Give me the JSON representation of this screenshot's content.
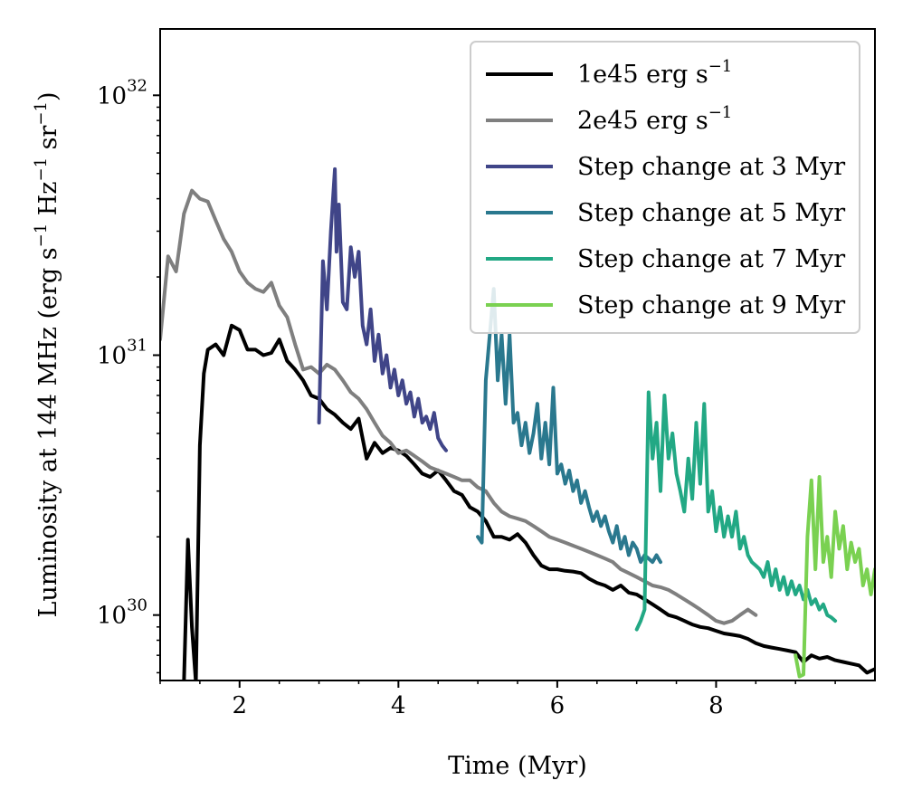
{
  "chart_data": {
    "type": "line",
    "xlabel": "Time (Myr)",
    "ylabel_parts": [
      "Luminosity at 144 MHz (erg s",
      "−1",
      " Hz",
      "−1",
      " sr",
      "−1",
      ")"
    ],
    "x_ticks": [
      {
        "value": 2,
        "label": "2"
      },
      {
        "value": 4,
        "label": "4"
      },
      {
        "value": 6,
        "label": "6"
      },
      {
        "value": 8,
        "label": "8"
      }
    ],
    "y_ticks": [
      {
        "value": 1e+30,
        "base": "10",
        "exp": "30"
      },
      {
        "value": 1e+31,
        "base": "10",
        "exp": "31"
      },
      {
        "value": 1e+32,
        "base": "10",
        "exp": "32"
      }
    ],
    "xlim": [
      1.0,
      10.0
    ],
    "ylim": [
      5.6e+29,
      1.8e+32
    ],
    "yscale": "log",
    "grid": false,
    "legend_position": "top-right",
    "series": [
      {
        "name": "1e45 erg s",
        "name_sup": "−1",
        "color": "#000000",
        "x": [
          1.3,
          1.35,
          1.4,
          1.45,
          1.5,
          1.55,
          1.6,
          1.7,
          1.8,
          1.9,
          2.0,
          2.1,
          2.2,
          2.3,
          2.4,
          2.5,
          2.6,
          2.7,
          2.8,
          2.9,
          3.0,
          3.1,
          3.2,
          3.3,
          3.4,
          3.5,
          3.6,
          3.7,
          3.8,
          3.9,
          4.0,
          4.1,
          4.2,
          4.3,
          4.4,
          4.5,
          4.6,
          4.7,
          4.8,
          4.9,
          5.0,
          5.1,
          5.2,
          5.3,
          5.4,
          5.5,
          5.6,
          5.7,
          5.8,
          5.9,
          6.0,
          6.1,
          6.2,
          6.3,
          6.4,
          6.5,
          6.6,
          6.7,
          6.8,
          6.9,
          7.0,
          7.1,
          7.2,
          7.3,
          7.4,
          7.5,
          7.6,
          7.7,
          7.8,
          7.9,
          8.0,
          8.1,
          8.2,
          8.3,
          8.4,
          8.5,
          8.6,
          8.7,
          8.8,
          8.9,
          9.0,
          9.1,
          9.2,
          9.3,
          9.4,
          9.5,
          9.6,
          9.7,
          9.8,
          9.9,
          10.0
        ],
        "y": [
          5.5e+29,
          1.95e+30,
          9e+29,
          5.5e+29,
          4.5e+30,
          8.5e+30,
          1.05e+31,
          1.1e+31,
          1e+31,
          1.3e+31,
          1.25e+31,
          1.05e+31,
          1.05e+31,
          1e+31,
          1.02e+31,
          1.15e+31,
          9.5e+30,
          8.8e+30,
          8e+30,
          7e+30,
          6.8e+30,
          6.2e+30,
          5.9e+30,
          5.5e+30,
          5.2e+30,
          5.7e+30,
          4e+30,
          4.6e+30,
          4.2e+30,
          4.4e+30,
          4.3e+30,
          4.1e+30,
          3.8e+30,
          3.5e+30,
          3.4e+30,
          3.6e+30,
          3.3e+30,
          3e+30,
          2.9e+30,
          2.6e+30,
          2.5e+30,
          2.3e+30,
          2e+30,
          2e+30,
          1.95e+30,
          2.05e+30,
          1.9e+30,
          1.7e+30,
          1.55e+30,
          1.5e+30,
          1.5e+30,
          1.48e+30,
          1.47e+30,
          1.45e+30,
          1.38e+30,
          1.33e+30,
          1.3e+30,
          1.25e+30,
          1.3e+30,
          1.22e+30,
          1.2e+30,
          1.15e+30,
          1.1e+30,
          1.05e+30,
          1e+30,
          9.8e+29,
          9.5e+29,
          9.2e+29,
          9e+29,
          8.9e+29,
          8.7e+29,
          8.5e+29,
          8.4e+29,
          8.3e+29,
          8.1e+29,
          7.8e+29,
          7.6e+29,
          7.5e+29,
          7.4e+29,
          7.3e+29,
          7.2e+29,
          6.6e+29,
          7e+29,
          6.8e+29,
          6.9e+29,
          6.7e+29,
          6.6e+29,
          6.5e+29,
          6.4e+29,
          6e+29,
          6.2e+29
        ]
      },
      {
        "name": "2e45 erg s",
        "name_sup": "−1",
        "color": "#7f7f7f",
        "x": [
          1.0,
          1.1,
          1.2,
          1.3,
          1.4,
          1.5,
          1.6,
          1.7,
          1.8,
          1.9,
          2.0,
          2.1,
          2.2,
          2.3,
          2.4,
          2.5,
          2.6,
          2.7,
          2.8,
          2.9,
          3.0,
          3.1,
          3.2,
          3.3,
          3.4,
          3.5,
          3.6,
          3.7,
          3.8,
          3.9,
          4.0,
          4.1,
          4.2,
          4.3,
          4.4,
          4.5,
          4.6,
          4.7,
          4.8,
          4.9,
          5.0,
          5.1,
          5.2,
          5.3,
          5.4,
          5.5,
          5.6,
          5.7,
          5.8,
          5.9,
          6.0,
          6.1,
          6.2,
          6.3,
          6.4,
          6.5,
          6.6,
          6.7,
          6.8,
          6.9,
          7.0,
          7.1,
          7.2,
          7.3,
          7.4,
          7.5,
          7.6,
          7.7,
          7.8,
          7.9,
          8.0,
          8.1,
          8.2,
          8.3,
          8.4,
          8.5
        ],
        "y": [
          1.15e+31,
          2.4e+31,
          2.1e+31,
          3.5e+31,
          4.3e+31,
          4e+31,
          3.9e+31,
          3.3e+31,
          2.8e+31,
          2.5e+31,
          2.1e+31,
          1.9e+31,
          1.8e+31,
          1.75e+31,
          1.9e+31,
          1.55e+31,
          1.4e+31,
          1.1e+31,
          8.8e+30,
          9e+30,
          8.5e+30,
          9.2e+30,
          8.8e+30,
          8e+30,
          7.2e+30,
          6.8e+30,
          6.2e+30,
          5.5e+30,
          4.9e+30,
          4.6e+30,
          4.2e+30,
          4.3e+30,
          4.1e+30,
          3.9e+30,
          3.7e+30,
          3.6e+30,
          3.5e+30,
          3.4e+30,
          3.3e+30,
          3.3e+30,
          3.1e+30,
          3e+30,
          2.7e+30,
          2.5e+30,
          2.4e+30,
          2.35e+30,
          2.3e+30,
          2.2e+30,
          2.1e+30,
          2e+30,
          1.95e+30,
          1.9e+30,
          1.85e+30,
          1.8e+30,
          1.75e+30,
          1.7e+30,
          1.65e+30,
          1.6e+30,
          1.5e+30,
          1.45e+30,
          1.4e+30,
          1.35e+30,
          1.3e+30,
          1.28e+30,
          1.25e+30,
          1.2e+30,
          1.15e+30,
          1.1e+30,
          1.05e+30,
          1e+30,
          9.5e+29,
          9.3e+29,
          9.5e+29,
          1e+30,
          1.05e+30,
          1e+30
        ]
      },
      {
        "name": "Step change at 3 Myr",
        "color": "#404588",
        "x": [
          3.0,
          3.05,
          3.1,
          3.15,
          3.2,
          3.22,
          3.25,
          3.3,
          3.35,
          3.4,
          3.45,
          3.5,
          3.55,
          3.6,
          3.65,
          3.7,
          3.75,
          3.8,
          3.85,
          3.9,
          3.95,
          4.0,
          4.05,
          4.1,
          4.15,
          4.2,
          4.25,
          4.3,
          4.35,
          4.4,
          4.45,
          4.5,
          4.55,
          4.6
        ],
        "y": [
          5.5e+30,
          2.3e+31,
          1.5e+31,
          3e+31,
          5.2e+31,
          2.5e+31,
          3.8e+31,
          1.6e+31,
          1.5e+31,
          2.6e+31,
          2e+31,
          2.5e+31,
          1.3e+31,
          1.1e+31,
          1.5e+31,
          9.5e+30,
          1.2e+31,
          8.5e+30,
          1e+31,
          7.5e+30,
          8.8e+30,
          7e+30,
          8e+30,
          6.5e+30,
          7.2e+30,
          5.8e+30,
          6.8e+30,
          5.5e+30,
          5.8e+30,
          5.2e+30,
          6e+30,
          4.8e+30,
          4.5e+30,
          4.3e+30
        ]
      },
      {
        "name": "Step change at 5 Myr",
        "color": "#2a788e",
        "x": [
          5.0,
          5.05,
          5.1,
          5.15,
          5.2,
          5.25,
          5.3,
          5.35,
          5.4,
          5.45,
          5.5,
          5.55,
          5.6,
          5.65,
          5.7,
          5.75,
          5.8,
          5.85,
          5.9,
          5.95,
          6.0,
          6.05,
          6.1,
          6.15,
          6.2,
          6.25,
          6.3,
          6.35,
          6.4,
          6.45,
          6.5,
          6.55,
          6.6,
          6.65,
          6.7,
          6.75,
          6.8,
          6.85,
          6.9,
          6.95,
          7.0,
          7.05,
          7.1,
          7.15,
          7.2,
          7.25,
          7.3
        ],
        "y": [
          2e+30,
          1.9e+30,
          8e+30,
          1.2e+31,
          1.8e+31,
          8e+30,
          1.2e+31,
          6.5e+30,
          1.2e+31,
          5.5e+30,
          6e+30,
          4.5e+30,
          5.5e+30,
          4.2e+30,
          5e+30,
          6.5e+30,
          4e+30,
          5.5e+30,
          3.8e+30,
          7.5e+30,
          3.5e+30,
          3.8e+30,
          3.2e+30,
          3.6e+30,
          3e+30,
          3.3e+30,
          2.7e+30,
          3e+30,
          2.6e+30,
          2.3e+30,
          2.5e+30,
          2.2e+30,
          2.4e+30,
          2.1e+30,
          1.9e+30,
          2.2e+30,
          1.8e+30,
          2e+30,
          1.7e+30,
          1.9e+30,
          1.8e+30,
          1.6e+30,
          1.7e+30,
          1.65e+30,
          1.6e+30,
          1.7e+30,
          1.6e+30
        ]
      },
      {
        "name": "Step change at 7 Myr",
        "color": "#22a884",
        "x": [
          7.0,
          7.05,
          7.1,
          7.15,
          7.2,
          7.25,
          7.3,
          7.35,
          7.4,
          7.45,
          7.5,
          7.55,
          7.6,
          7.65,
          7.7,
          7.75,
          7.8,
          7.85,
          7.9,
          7.95,
          8.0,
          8.05,
          8.1,
          8.15,
          8.2,
          8.25,
          8.3,
          8.35,
          8.4,
          8.45,
          8.5,
          8.55,
          8.6,
          8.65,
          8.7,
          8.75,
          8.8,
          8.85,
          8.9,
          8.95,
          9.0,
          9.05,
          9.1,
          9.15,
          9.2,
          9.25,
          9.3,
          9.35,
          9.4,
          9.45,
          9.5
        ],
        "y": [
          8.8e+29,
          9.5e+29,
          1.05e+30,
          7.2e+30,
          4e+30,
          5.5e+30,
          3e+30,
          7e+30,
          4e+30,
          5e+30,
          3.5e+30,
          3e+30,
          2.5e+30,
          4e+30,
          2.8e+30,
          5.5e+30,
          3.2e+30,
          6.5e+30,
          2.5e+30,
          3e+30,
          2.1e+30,
          2.6e+30,
          2e+30,
          2.4e+30,
          2e+30,
          2.5e+30,
          1.8e+30,
          2e+30,
          1.7e+30,
          1.6e+30,
          1.55e+30,
          1.5e+30,
          1.4e+30,
          1.6e+30,
          1.3e+30,
          1.5e+30,
          1.25e+30,
          1.4e+30,
          1.2e+30,
          1.35e+30,
          1.2e+30,
          1.3e+30,
          1.15e+30,
          1.25e+30,
          1.1e+30,
          1.15e+30,
          1.05e+30,
          1.1e+30,
          1e+30,
          9.8e+29,
          9.5e+29
        ]
      },
      {
        "name": "Step change at 9 Myr",
        "color": "#7ad151",
        "x": [
          9.0,
          9.05,
          9.1,
          9.15,
          9.2,
          9.25,
          9.3,
          9.35,
          9.4,
          9.45,
          9.5,
          9.55,
          9.6,
          9.65,
          9.7,
          9.75,
          9.8,
          9.85,
          9.9,
          9.95,
          10.0
        ],
        "y": [
          7e+29,
          5.8e+29,
          5.9e+29,
          2e+30,
          3.3e+30,
          1.5e+30,
          3.4e+30,
          1.6e+30,
          2e+30,
          1.4e+30,
          2.5e+30,
          1.8e+30,
          2.2e+30,
          1.5e+30,
          1.9e+30,
          1.6e+30,
          1.8e+30,
          1.3e+30,
          1.5e+30,
          1.2e+30,
          1.5e+30
        ]
      }
    ]
  }
}
